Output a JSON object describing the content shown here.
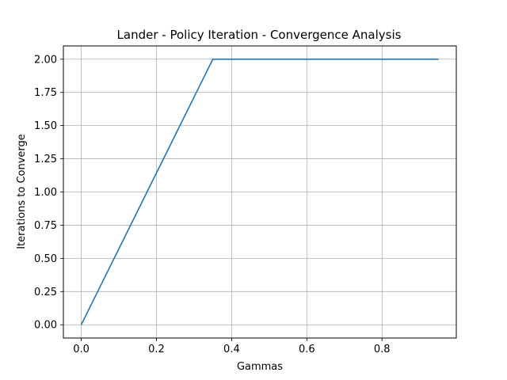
{
  "chart_data": {
    "type": "line",
    "title": "Lander - Policy Iteration - Convergence Analysis",
    "xlabel": "Gammas",
    "ylabel": "Iterations to Converge",
    "xlim": [
      -0.0475,
      0.9975
    ],
    "ylim": [
      -0.1,
      2.1
    ],
    "grid": true,
    "x_ticks": [
      0.0,
      0.2,
      0.4,
      0.6,
      0.8
    ],
    "x_tick_labels": [
      "0.0",
      "0.2",
      "0.4",
      "0.6",
      "0.8"
    ],
    "y_ticks": [
      0.0,
      0.25,
      0.5,
      0.75,
      1.0,
      1.25,
      1.5,
      1.75,
      2.0
    ],
    "y_tick_labels": [
      "0.00",
      "0.25",
      "0.50",
      "0.75",
      "1.00",
      "1.25",
      "1.50",
      "1.75",
      "2.00"
    ],
    "series": [
      {
        "color": "#1f77b4",
        "x": [
          0.0,
          0.05,
          0.1,
          0.15,
          0.2,
          0.25,
          0.3,
          0.35,
          0.4,
          0.45,
          0.5,
          0.55,
          0.6,
          0.65,
          0.7,
          0.75,
          0.8,
          0.85,
          0.9,
          0.95
        ],
        "y": [
          0.0,
          0.2857,
          0.5714,
          0.8571,
          1.1429,
          1.4286,
          1.7143,
          2.0,
          2.0,
          2.0,
          2.0,
          2.0,
          2.0,
          2.0,
          2.0,
          2.0,
          2.0,
          2.0,
          2.0,
          2.0
        ]
      }
    ]
  }
}
